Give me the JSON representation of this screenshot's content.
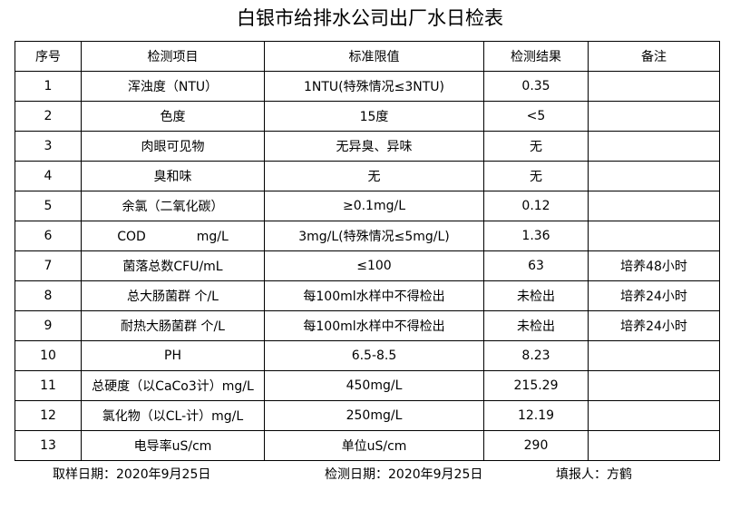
{
  "title": "白银市给排水公司出厂水日检表",
  "headers": [
    "序号",
    "检测项目",
    "标准限值",
    "检测结果",
    "备注"
  ],
  "rows": [
    [
      "1",
      "浑浊度（NTU）",
      "1NTU(特殊情况≤3NTU)",
      "0.35",
      ""
    ],
    [
      "2",
      "色度",
      "15度",
      "<5",
      ""
    ],
    [
      "3",
      "肉眼可见物",
      "无异臭、异味",
      "无",
      ""
    ],
    [
      "4",
      "臭和味",
      "无",
      "无",
      ""
    ],
    [
      "5",
      "余氯（二氧化碳）",
      "≥0.1mg/L",
      "0.12",
      ""
    ],
    [
      "6",
      "COD　　　　mg/L",
      "3mg/L(特殊情况≤5mg/L)",
      "1.36",
      ""
    ],
    [
      "7",
      "菌落总数CFU/mL",
      "≤100",
      "63",
      "培养48小时"
    ],
    [
      "8",
      "总大肠菌群 个/L",
      "每100ml水样中不得检出",
      "未检出",
      "培养24小时"
    ],
    [
      "9",
      "耐热大肠菌群 个/L",
      "每100ml水样中不得检出",
      "未检出",
      "培养24小时"
    ],
    [
      "10",
      "PH",
      "6.5-8.5",
      "8.23",
      ""
    ],
    [
      "11",
      "总硬度（以CaCo3计）mg/L",
      "450mg/L",
      "215.29",
      ""
    ],
    [
      "12",
      "氯化物（以CL-计）mg/L",
      "250mg/L",
      "12.19",
      ""
    ],
    [
      "13",
      "电导率uS/cm",
      "单位uS/cm",
      "290",
      ""
    ]
  ],
  "footer": {
    "sample_date": "取样日期：2020年9月25日",
    "test_date": "检测日期：2020年9月25日",
    "reporter": "填报人：方鹤"
  }
}
